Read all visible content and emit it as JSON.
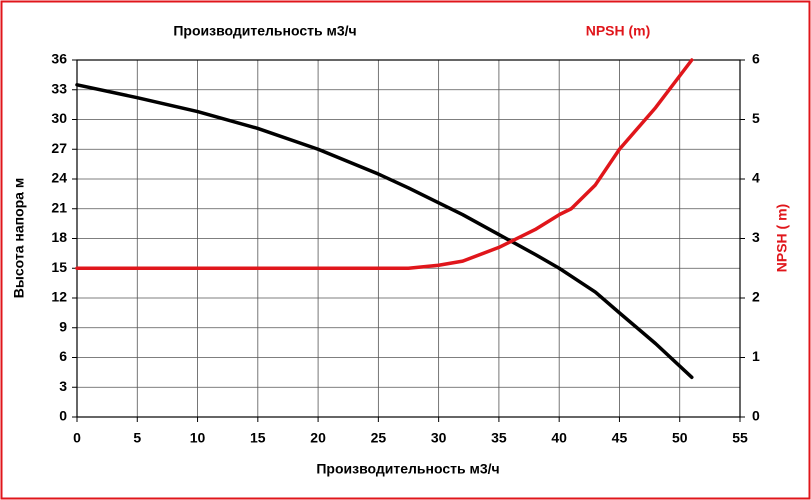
{
  "chart_data": {
    "type": "line",
    "xlabel": "Производительность м3/ч",
    "ylabel": "Высота напора м",
    "y2label": "NPSH ( m)",
    "x": [
      0,
      5,
      10,
      15,
      20,
      25,
      27.5,
      30,
      32,
      35,
      38,
      40,
      41,
      43,
      45,
      48,
      51
    ],
    "series": [
      {
        "name": "Производительность м3/ч",
        "color": "#000000",
        "values": [
          33.5,
          32.2,
          30.8,
          29.1,
          27.0,
          24.5,
          23.1,
          21.6,
          20.4,
          18.4,
          16.4,
          15.0,
          14.2,
          12.6,
          10.5,
          7.4,
          4.0
        ]
      },
      {
        "name": "NPSH (m)",
        "color": "#e0161b",
        "axis": "y2",
        "values": [
          2.5,
          2.5,
          2.5,
          2.5,
          2.5,
          2.5,
          2.5,
          2.55,
          2.62,
          2.85,
          3.15,
          3.4,
          3.5,
          3.9,
          4.5,
          5.2,
          6.0
        ]
      }
    ],
    "xlim": [
      0,
      55
    ],
    "xticks": [
      0,
      5,
      10,
      15,
      20,
      25,
      30,
      35,
      40,
      45,
      50,
      55
    ],
    "ylim": [
      0,
      36
    ],
    "yticks": [
      0,
      3,
      6,
      9,
      12,
      15,
      18,
      21,
      24,
      27,
      30,
      33,
      36
    ],
    "y2lim": [
      0,
      6
    ],
    "y2ticks": [
      0,
      1,
      2,
      3,
      4,
      5,
      6
    ],
    "grid": true
  }
}
